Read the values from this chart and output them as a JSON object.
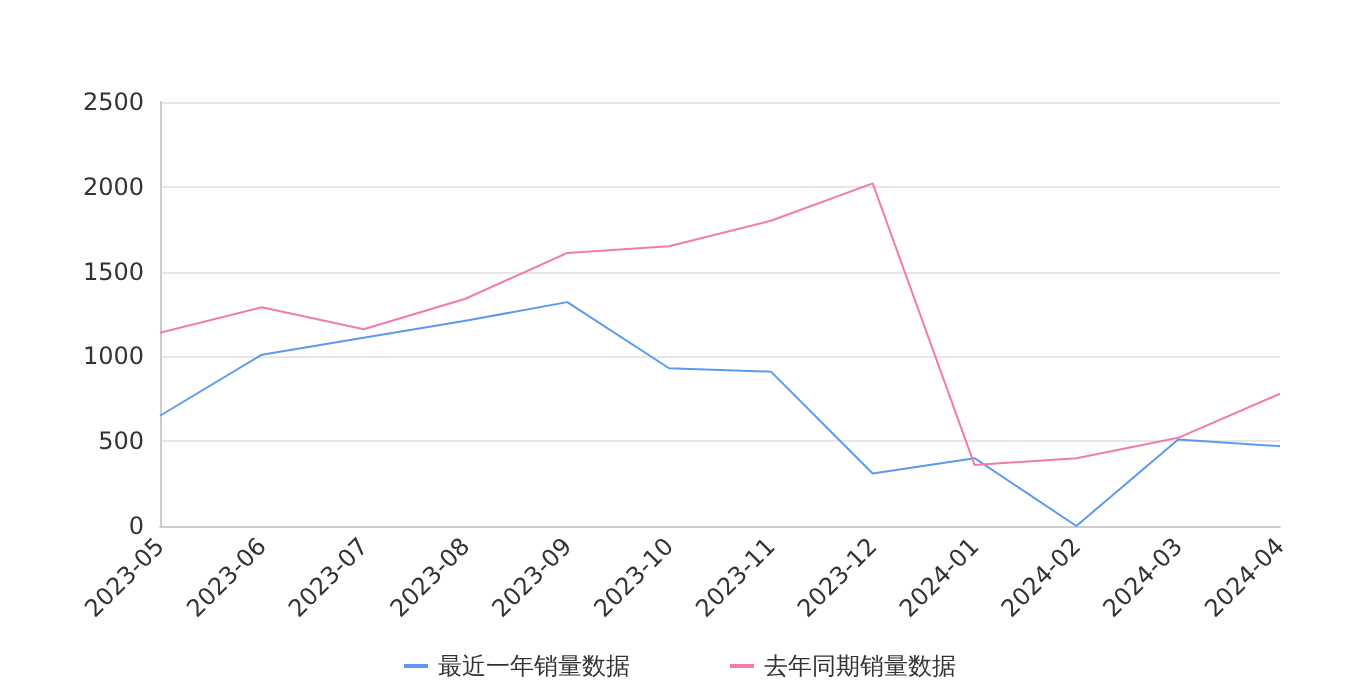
{
  "chart_data": {
    "type": "line",
    "categories": [
      "2023-05",
      "2023-06",
      "2023-07",
      "2023-08",
      "2023-09",
      "2023-10",
      "2023-11",
      "2023-12",
      "2024-01",
      "2024-02",
      "2024-03",
      "2024-04"
    ],
    "series": [
      {
        "name": "最近一年销量数据",
        "color": "#5b9bef",
        "values": [
          650,
          1010,
          1110,
          1210,
          1320,
          930,
          910,
          310,
          400,
          0,
          510,
          470
        ]
      },
      {
        "name": "去年同期销量数据",
        "color": "#f27aae",
        "values": [
          1140,
          1290,
          1160,
          1340,
          1610,
          1650,
          1800,
          2020,
          360,
          400,
          520,
          780
        ]
      }
    ],
    "ylim": [
      0,
      2500
    ],
    "yticks": [
      0,
      500,
      1000,
      1500,
      2000,
      2500
    ],
    "grid": "y",
    "legend": "bottom",
    "marker": "none",
    "line_style": "solid"
  }
}
